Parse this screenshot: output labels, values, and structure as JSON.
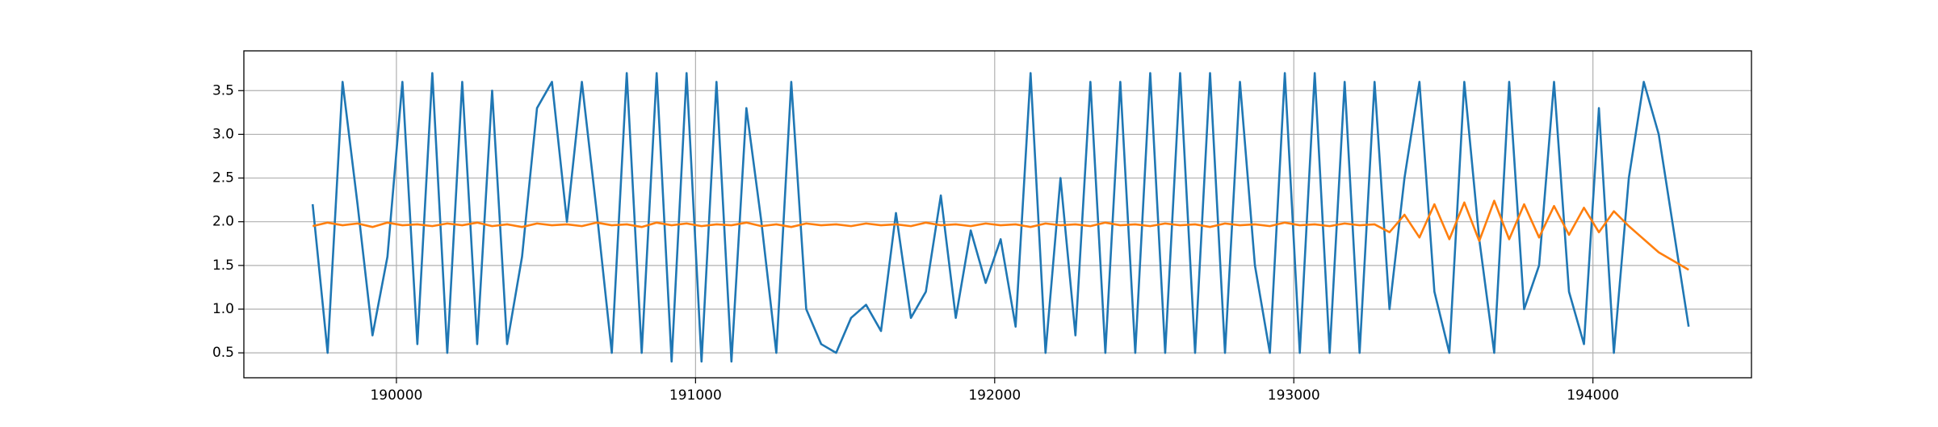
{
  "chart_data": {
    "type": "line",
    "x": [
      189720,
      189770,
      189820,
      189870,
      189920,
      189970,
      190020,
      190070,
      190120,
      190170,
      190220,
      190270,
      190320,
      190370,
      190420,
      190470,
      190520,
      190570,
      190620,
      190670,
      190720,
      190770,
      190820,
      190870,
      190920,
      190970,
      191020,
      191070,
      191120,
      191170,
      191220,
      191270,
      191320,
      191370,
      191420,
      191470,
      191520,
      191570,
      191620,
      191670,
      191720,
      191770,
      191820,
      191870,
      191920,
      191970,
      192020,
      192070,
      192120,
      192170,
      192220,
      192270,
      192320,
      192370,
      192420,
      192470,
      192520,
      192570,
      192620,
      192670,
      192720,
      192770,
      192820,
      192870,
      192920,
      192970,
      193020,
      193070,
      193120,
      193170,
      193220,
      193270,
      193320,
      193370,
      193420,
      193470,
      193520,
      193570,
      193620,
      193670,
      193720,
      193770,
      193820,
      193870,
      193920,
      193970,
      194020,
      194070,
      194120,
      194170,
      194220,
      194270,
      194320
    ],
    "series": [
      {
        "color": "#1f77b4",
        "values": [
          2.2,
          0.5,
          3.6,
          2.2,
          0.7,
          1.6,
          3.6,
          0.6,
          3.7,
          0.5,
          3.6,
          0.6,
          3.5,
          0.6,
          1.6,
          3.3,
          3.6,
          2.0,
          3.6,
          2.1,
          0.5,
          3.7,
          0.5,
          3.7,
          0.4,
          3.7,
          0.4,
          3.6,
          0.4,
          3.3,
          2.0,
          0.5,
          3.6,
          1.0,
          0.6,
          0.5,
          0.9,
          1.05,
          0.75,
          2.1,
          0.9,
          1.2,
          2.3,
          0.9,
          1.9,
          1.3,
          1.8,
          0.8,
          3.7,
          0.5,
          2.5,
          0.7,
          3.6,
          0.5,
          3.6,
          0.5,
          3.7,
          0.5,
          3.7,
          0.5,
          3.7,
          0.5,
          3.6,
          1.5,
          0.5,
          3.7,
          0.5,
          3.7,
          0.5,
          3.6,
          0.5,
          3.6,
          1.0,
          2.5,
          3.6,
          1.2,
          0.5,
          3.6,
          1.8,
          0.5,
          3.6,
          1.0,
          1.5,
          3.6,
          1.2,
          0.6,
          3.3,
          0.5,
          2.5,
          3.6,
          3.0,
          1.9,
          0.8
        ]
      },
      {
        "color": "#ff7f0e",
        "values": [
          1.95,
          1.99,
          1.96,
          1.98,
          1.94,
          1.99,
          1.96,
          1.97,
          1.95,
          1.98,
          1.96,
          1.99,
          1.95,
          1.97,
          1.94,
          1.98,
          1.96,
          1.97,
          1.95,
          1.99,
          1.96,
          1.97,
          1.94,
          1.99,
          1.96,
          1.98,
          1.95,
          1.97,
          1.96,
          1.99,
          1.95,
          1.97,
          1.94,
          1.98,
          1.96,
          1.97,
          1.95,
          1.98,
          1.96,
          1.97,
          1.95,
          1.99,
          1.96,
          1.97,
          1.95,
          1.98,
          1.96,
          1.97,
          1.94,
          1.98,
          1.96,
          1.97,
          1.95,
          1.99,
          1.96,
          1.97,
          1.95,
          1.98,
          1.96,
          1.97,
          1.94,
          1.98,
          1.96,
          1.97,
          1.95,
          1.99,
          1.96,
          1.97,
          1.95,
          1.98,
          1.96,
          1.97,
          1.88,
          2.08,
          1.82,
          2.2,
          1.8,
          2.22,
          1.78,
          2.24,
          1.8,
          2.2,
          1.82,
          2.18,
          1.85,
          2.16,
          1.88,
          2.12,
          1.95,
          1.8,
          1.65,
          1.55,
          1.45
        ]
      }
    ],
    "xlim": [
      189490,
      194530
    ],
    "ylim": [
      0.215,
      3.955
    ],
    "xticks": [
      190000,
      191000,
      192000,
      193000,
      194000
    ],
    "yticks": [
      0.5,
      {
        "value": 1.0,
        "label": "1.0"
      },
      1.5,
      {
        "value": 2.0,
        "label": "2.0"
      },
      2.5,
      {
        "value": 3.0,
        "label": "3.0"
      },
      3.5
    ],
    "grid": true
  }
}
